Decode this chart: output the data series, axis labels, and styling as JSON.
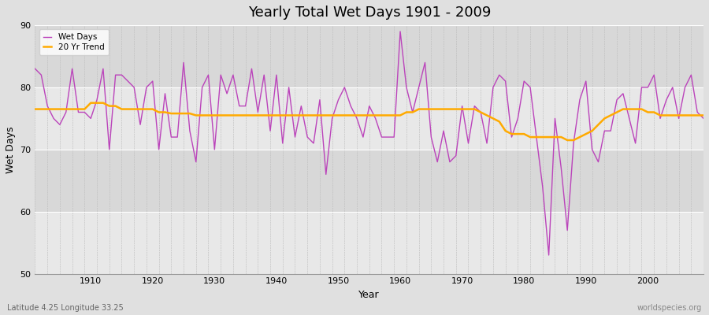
{
  "title": "Yearly Total Wet Days 1901 - 2009",
  "xlabel": "Year",
  "ylabel": "Wet Days",
  "footnote_left": "Latitude 4.25 Longitude 33.25",
  "footnote_right": "worldspecies.org",
  "line_color": "#bb44bb",
  "trend_color": "#ffaa00",
  "background_color": "#e0e0e0",
  "plot_bg_light": "#e8e8e8",
  "plot_bg_dark": "#d8d8d8",
  "ylim": [
    50,
    90
  ],
  "xlim": [
    1901,
    2009
  ],
  "yticks": [
    50,
    60,
    70,
    80,
    90
  ],
  "xticks": [
    1910,
    1920,
    1930,
    1940,
    1950,
    1960,
    1970,
    1980,
    1990,
    2000
  ],
  "years": [
    1901,
    1902,
    1903,
    1904,
    1905,
    1906,
    1907,
    1908,
    1909,
    1910,
    1911,
    1912,
    1913,
    1914,
    1915,
    1916,
    1917,
    1918,
    1919,
    1920,
    1921,
    1922,
    1923,
    1924,
    1925,
    1926,
    1927,
    1928,
    1929,
    1930,
    1931,
    1932,
    1933,
    1934,
    1935,
    1936,
    1937,
    1938,
    1939,
    1940,
    1941,
    1942,
    1943,
    1944,
    1945,
    1946,
    1947,
    1948,
    1949,
    1950,
    1951,
    1952,
    1953,
    1954,
    1955,
    1956,
    1957,
    1958,
    1959,
    1960,
    1961,
    1962,
    1963,
    1964,
    1965,
    1966,
    1967,
    1968,
    1969,
    1970,
    1971,
    1972,
    1973,
    1974,
    1975,
    1976,
    1977,
    1978,
    1979,
    1980,
    1981,
    1982,
    1983,
    1984,
    1985,
    1986,
    1987,
    1988,
    1989,
    1990,
    1991,
    1992,
    1993,
    1994,
    1995,
    1996,
    1997,
    1998,
    1999,
    2000,
    2001,
    2002,
    2003,
    2004,
    2005,
    2006,
    2007,
    2008,
    2009
  ],
  "wet_days": [
    83,
    82,
    77,
    75,
    74,
    76,
    83,
    76,
    76,
    75,
    78,
    83,
    70,
    82,
    82,
    81,
    80,
    74,
    80,
    81,
    70,
    79,
    72,
    72,
    84,
    73,
    68,
    80,
    82,
    70,
    82,
    79,
    82,
    77,
    77,
    83,
    76,
    82,
    73,
    82,
    71,
    80,
    72,
    77,
    72,
    71,
    78,
    66,
    75,
    78,
    80,
    77,
    75,
    72,
    77,
    75,
    72,
    72,
    72,
    89,
    80,
    76,
    80,
    84,
    72,
    68,
    73,
    68,
    69,
    77,
    71,
    77,
    76,
    71,
    80,
    82,
    81,
    72,
    75,
    81,
    80,
    72,
    64,
    53,
    75,
    67,
    57,
    71,
    78,
    81,
    70,
    68,
    73,
    73,
    78,
    79,
    75,
    71,
    80,
    80,
    82,
    75,
    78,
    80,
    75,
    80,
    82,
    76,
    75
  ],
  "trend_20yr": [
    76.5,
    76.5,
    76.5,
    76.5,
    76.5,
    76.5,
    76.5,
    76.5,
    76.5,
    77.5,
    77.5,
    77.5,
    77.0,
    77.0,
    76.5,
    76.5,
    76.5,
    76.5,
    76.5,
    76.5,
    76.0,
    76.0,
    75.8,
    75.8,
    75.8,
    75.8,
    75.5,
    75.5,
    75.5,
    75.5,
    75.5,
    75.5,
    75.5,
    75.5,
    75.5,
    75.5,
    75.5,
    75.5,
    75.5,
    75.5,
    75.5,
    75.5,
    75.5,
    75.5,
    75.5,
    75.5,
    75.5,
    75.5,
    75.5,
    75.5,
    75.5,
    75.5,
    75.5,
    75.5,
    75.5,
    75.5,
    75.5,
    75.5,
    75.5,
    75.5,
    76.0,
    76.0,
    76.5,
    76.5,
    76.5,
    76.5,
    76.5,
    76.5,
    76.5,
    76.5,
    76.5,
    76.5,
    76.0,
    75.5,
    75.0,
    74.5,
    73.0,
    72.5,
    72.5,
    72.5,
    72.0,
    72.0,
    72.0,
    72.0,
    72.0,
    72.0,
    71.5,
    71.5,
    72.0,
    72.5,
    73.0,
    74.0,
    75.0,
    75.5,
    76.0,
    76.5,
    76.5,
    76.5,
    76.5,
    76.0,
    76.0,
    75.5,
    75.5,
    75.5,
    75.5,
    75.5,
    75.5,
    75.5,
    75.5
  ]
}
